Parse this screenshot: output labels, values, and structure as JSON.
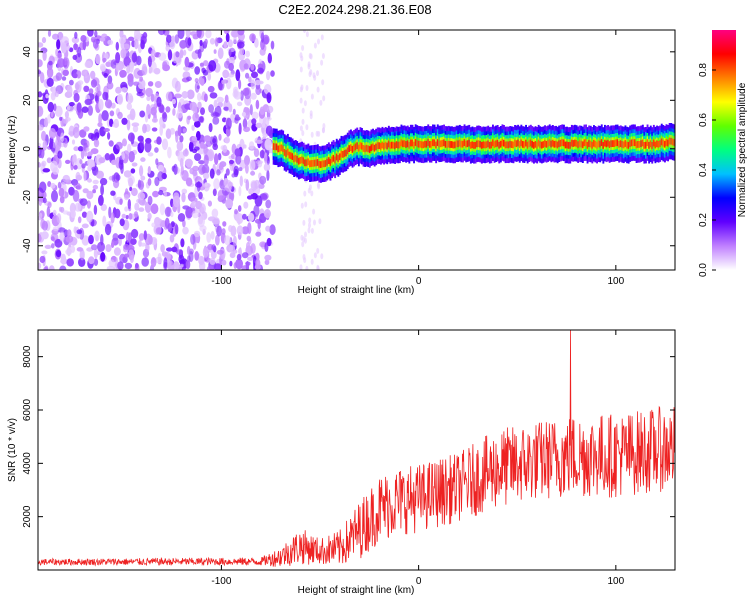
{
  "figure_title": "C2E2.2024.298.21.36.E08",
  "chart_data": [
    {
      "type": "heatmap",
      "xlabel": "Height of straight line (km)",
      "ylabel": "Frequency (Hz)",
      "xlim": [
        -193,
        130
      ],
      "ylim": [
        -50,
        49
      ],
      "xticks": [
        -100,
        0,
        100
      ],
      "yticks": [
        -40,
        -20,
        0,
        20,
        40
      ],
      "colorbar": {
        "label": "Normalized spectral amplitude",
        "range": [
          0,
          0.96
        ],
        "ticks": [
          0.0,
          0.2,
          0.4,
          0.6,
          0.8
        ],
        "colormap": [
          "#ffffff",
          "#c080ff",
          "#6000ff",
          "#0000ff",
          "#00c0ff",
          "#00ff80",
          "#60ff00",
          "#ffff00",
          "#ff8000",
          "#ff0000",
          "#ff0080"
        ]
      },
      "ridge": {
        "x": [
          -75,
          -70,
          -65,
          -60,
          -55,
          -50,
          -45,
          -40,
          -35,
          -30,
          -25,
          -20,
          -10,
          0,
          20,
          40,
          60,
          80,
          100,
          120,
          130
        ],
        "y": [
          1,
          0,
          -3,
          -5,
          -6,
          -6,
          -5,
          -3,
          0,
          1,
          0,
          1,
          2,
          2,
          2,
          2,
          2,
          2,
          2,
          2,
          3
        ]
      }
    },
    {
      "type": "line",
      "xlabel": "Height of straight line (km)",
      "ylabel": "SNR (10 * v/v)",
      "xlim": [
        -193,
        130
      ],
      "ylim": [
        0,
        9000
      ],
      "xticks": [
        -100,
        0,
        100
      ],
      "yticks": [
        2000,
        4000,
        6000,
        8000
      ],
      "series": [
        {
          "color": "#ee2222",
          "envelope_x": [
            -193,
            -80,
            -70,
            -60,
            -50,
            -40,
            -30,
            -20,
            -10,
            0,
            20,
            40,
            60,
            80,
            100,
            120,
            130
          ],
          "envelope_mean": [
            300,
            320,
            500,
            900,
            700,
            800,
            1500,
            2300,
            2600,
            2700,
            3100,
            3800,
            4100,
            4300,
            4300,
            4500,
            4600
          ],
          "envelope_spread": [
            120,
            150,
            400,
            700,
            500,
            700,
            1100,
            1300,
            1300,
            1300,
            1300,
            1500,
            1500,
            1600,
            1600,
            1600,
            1600
          ],
          "peak": {
            "x": 77,
            "y": 9000
          }
        }
      ]
    }
  ]
}
